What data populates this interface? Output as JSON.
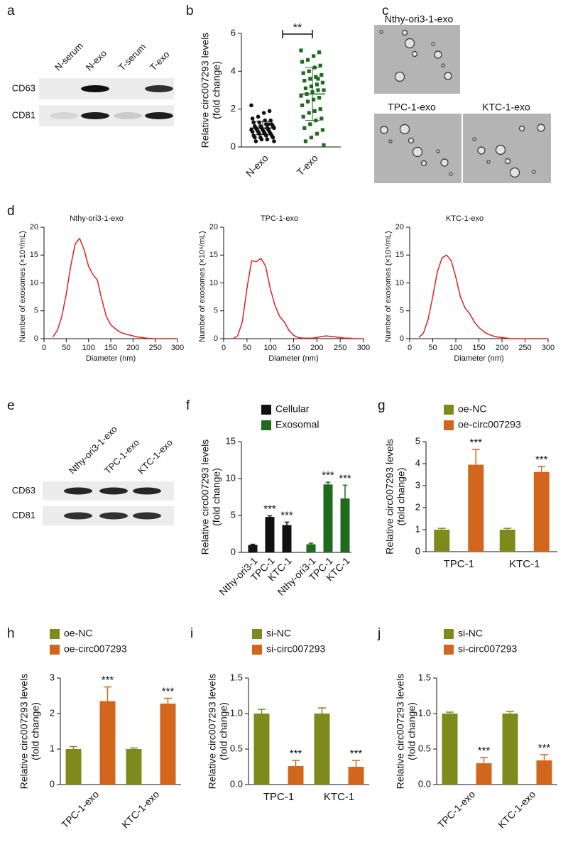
{
  "chart_data": [
    {
      "type": "blot",
      "panel": "a",
      "lanes": [
        "N-serum",
        "N-exo",
        "T-serum",
        "T-exo"
      ],
      "proteins": [
        "CD63",
        "CD81"
      ]
    },
    {
      "type": "dot",
      "panel": "b",
      "ylabel": [
        "Relative circ007293 levels",
        "(fold change)"
      ],
      "categories": [
        "N-exo",
        "T-exo"
      ],
      "colors": [
        "#111111",
        "#1e6b1e"
      ],
      "values": [
        [
          2.2,
          1.9,
          1.8,
          1.6,
          1.5,
          1.4,
          1.4,
          1.3,
          1.3,
          1.2,
          1.2,
          1.1,
          1.1,
          1.1,
          1.0,
          1.0,
          1.0,
          1.0,
          0.9,
          0.9,
          0.9,
          0.9,
          0.8,
          0.8,
          0.8,
          0.8,
          0.7,
          0.7,
          0.7,
          0.6,
          0.6,
          0.6,
          0.5,
          0.5,
          0.5,
          0.4,
          0.4,
          0.3,
          0.3,
          1.2
        ],
        [
          5.1,
          5.0,
          4.8,
          4.6,
          4.5,
          4.3,
          4.2,
          4.0,
          3.9,
          3.8,
          3.7,
          3.6,
          3.5,
          3.4,
          3.3,
          3.2,
          3.1,
          3.0,
          3.0,
          2.9,
          2.8,
          2.7,
          2.6,
          2.5,
          2.4,
          2.2,
          2.0,
          1.9,
          1.8,
          1.6,
          1.5,
          1.4,
          1.2,
          1.0,
          0.9,
          0.7,
          0.5,
          0.3,
          0.1,
          3.6
        ]
      ],
      "means": [
        1.0,
        2.8
      ],
      "sd": [
        0.35,
        1.4
      ],
      "significance": "**",
      "ylim": [
        0,
        6
      ],
      "yticks": [
        0,
        2,
        4,
        6
      ]
    },
    {
      "type": "micrograph",
      "panel": "c",
      "images": [
        "Nthy-ori3-1-exo",
        "TPC-1-exo",
        "KTC-1-exo"
      ]
    },
    {
      "type": "line",
      "panel": "d",
      "title": "Nthy-ori3-1-exo",
      "xlabel": "Diameter (nm)",
      "ylabel": "Number of exosomes (×10⁶/mL)",
      "color": "#e02020",
      "x": [
        20,
        30,
        40,
        50,
        60,
        70,
        80,
        90,
        100,
        110,
        120,
        130,
        140,
        150,
        160,
        170,
        180,
        190,
        200,
        210,
        220,
        230,
        240,
        250,
        260,
        270,
        280,
        290,
        300
      ],
      "values": [
        0.3,
        1.5,
        4,
        8,
        13,
        17,
        18,
        16,
        13,
        11.5,
        10.5,
        7,
        4,
        2.5,
        1.8,
        1.2,
        0.9,
        0.7,
        0.5,
        0.3,
        0.2,
        0.1,
        0.05,
        0,
        0,
        0,
        0,
        0,
        0
      ],
      "xlim": [
        0,
        300
      ],
      "xticks": [
        0,
        50,
        100,
        150,
        200,
        250,
        300
      ],
      "ylim": [
        0,
        20
      ],
      "yticks": [
        0,
        5,
        10,
        15,
        20
      ]
    },
    {
      "type": "line",
      "title": "TPC-1-exo",
      "xlabel": "Diameter (nm)",
      "ylabel": "Number of exosomes (×10⁶/mL)",
      "color": "#e02020",
      "x": [
        20,
        30,
        40,
        50,
        60,
        70,
        80,
        90,
        100,
        110,
        120,
        130,
        140,
        150,
        160,
        170,
        180,
        190,
        200,
        210,
        220,
        230,
        240,
        250,
        260,
        270,
        280,
        290,
        300
      ],
      "values": [
        0,
        0.5,
        3,
        9,
        14,
        13.8,
        14.4,
        13,
        9,
        6,
        4,
        3,
        1.5,
        0.6,
        0.2,
        0.1,
        0.1,
        0.1,
        0.2,
        0.4,
        0.5,
        0.4,
        0.3,
        0.2,
        0.1,
        0.1,
        0,
        0,
        0
      ],
      "xlim": [
        0,
        300
      ],
      "xticks": [
        0,
        50,
        100,
        150,
        200,
        250,
        300
      ],
      "ylim": [
        0,
        20
      ],
      "yticks": [
        0,
        5,
        10,
        15,
        20
      ]
    },
    {
      "type": "line",
      "title": "KTC-1-exo",
      "xlabel": "Diameter (nm)",
      "ylabel": "Number of exosomes (×10⁶/mL)",
      "color": "#e02020",
      "x": [
        20,
        30,
        40,
        50,
        60,
        70,
        80,
        90,
        100,
        110,
        120,
        130,
        140,
        150,
        160,
        170,
        180,
        190,
        200,
        210,
        220,
        230,
        240,
        250,
        260,
        270,
        280,
        290,
        300
      ],
      "values": [
        0.2,
        1,
        3.5,
        7.5,
        12,
        14.5,
        15,
        14,
        11,
        7.5,
        5.5,
        4.5,
        3,
        2,
        1.3,
        0.8,
        0.5,
        0.3,
        0.2,
        0.1,
        0,
        0,
        0,
        0,
        0,
        0,
        0,
        0,
        0
      ],
      "xlim": [
        0,
        300
      ],
      "xticks": [
        0,
        50,
        100,
        150,
        200,
        250,
        300
      ],
      "ylim": [
        0,
        20
      ],
      "yticks": [
        0,
        5,
        10,
        15,
        20
      ]
    },
    {
      "type": "blot",
      "panel": "e",
      "lanes": [
        "Nthy-ori3-1-exo",
        "TPC-1-exo",
        "KTC-1-exo"
      ],
      "proteins": [
        "CD63",
        "CD81"
      ]
    },
    {
      "type": "bar",
      "panel": "f",
      "ylabel": [
        "Relative circ007293 levels",
        "(fold change)"
      ],
      "categories": [
        "Nthy-ori3-1",
        "TPC-1",
        "KTC-1"
      ],
      "series": [
        {
          "name": "Cellular",
          "color": "#111111",
          "values": [
            1,
            4.8,
            3.7
          ],
          "errors": [
            0.1,
            0.15,
            0.4
          ],
          "significance": [
            null,
            "***",
            "***"
          ]
        },
        {
          "name": "Exosomal",
          "color": "#1e6b1e",
          "values": [
            1.1,
            9.2,
            7.3
          ],
          "errors": [
            0.15,
            0.3,
            1.8
          ],
          "significance": [
            null,
            "***",
            "***"
          ]
        }
      ],
      "ylim": [
        0,
        15
      ],
      "yticks": [
        0,
        5,
        10,
        15
      ]
    },
    {
      "type": "bar",
      "panel": "g",
      "ylabel": [
        "Relative circ007293 levels",
        "(fold change)"
      ],
      "categories": [
        "TPC-1",
        "KTC-1"
      ],
      "series": [
        {
          "name": "oe-NC",
          "color": "#7f8a1c",
          "values": [
            1,
            1
          ],
          "errors": [
            0.06,
            0.06
          ],
          "significance": [
            null,
            null
          ]
        },
        {
          "name": "oe-circ007293",
          "color": "#d2661c",
          "values": [
            3.95,
            3.62
          ],
          "errors": [
            0.7,
            0.25
          ],
          "significance": [
            "***",
            "***"
          ]
        }
      ],
      "ylim": [
        0,
        5
      ],
      "yticks": [
        0,
        1,
        2,
        3,
        4,
        5
      ]
    },
    {
      "type": "bar",
      "panel": "h",
      "ylabel": [
        "Relative circ007293 levels",
        "(fold change)"
      ],
      "categories": [
        "TPC-1-exo",
        "KTC-1-exo"
      ],
      "series": [
        {
          "name": "oe-NC",
          "color": "#7f8a1c",
          "values": [
            1,
            1
          ],
          "errors": [
            0.07,
            0.03
          ],
          "significance": [
            null,
            null
          ]
        },
        {
          "name": "oe-circ007293",
          "color": "#d2661c",
          "values": [
            2.35,
            2.28
          ],
          "errors": [
            0.4,
            0.15
          ],
          "significance": [
            "***",
            "***"
          ]
        }
      ],
      "ylim": [
        0,
        3
      ],
      "yticks": [
        0,
        1,
        2,
        3
      ]
    },
    {
      "type": "bar",
      "panel": "i",
      "ylabel": [
        "Relative circ007293 levels",
        "(fold change)"
      ],
      "categories": [
        "TPC-1",
        "KTC-1"
      ],
      "series": [
        {
          "name": "si-NC",
          "color": "#7f8a1c",
          "values": [
            1,
            1
          ],
          "errors": [
            0.06,
            0.08
          ],
          "significance": [
            null,
            null
          ]
        },
        {
          "name": "si-circ007293",
          "color": "#d2661c",
          "values": [
            0.26,
            0.25
          ],
          "errors": [
            0.08,
            0.09
          ],
          "significance": [
            "***",
            "***"
          ]
        }
      ],
      "ylim": [
        0,
        1.5
      ],
      "yticks": [
        {
          "value": 0,
          "label": "0.0"
        },
        0.5,
        {
          "value": 1,
          "label": "1.0"
        },
        1.5
      ]
    },
    {
      "type": "bar",
      "panel": "j",
      "ylabel": [
        "Relative circ007293 levels",
        "(fold change)"
      ],
      "categories": [
        "TPC-1-exo",
        "KTC-1-exo"
      ],
      "series": [
        {
          "name": "si-NC",
          "color": "#7f8a1c",
          "values": [
            1,
            1
          ],
          "errors": [
            0.02,
            0.03
          ],
          "significance": [
            null,
            null
          ]
        },
        {
          "name": "si-circ007293",
          "color": "#d2661c",
          "values": [
            0.3,
            0.34
          ],
          "errors": [
            0.08,
            0.08
          ],
          "significance": [
            "***",
            "***"
          ]
        }
      ],
      "ylim": [
        0,
        1.5
      ],
      "yticks": [
        {
          "value": 0,
          "label": "0.0"
        },
        0.5,
        {
          "value": 1,
          "label": "1.0"
        },
        1.5
      ]
    }
  ]
}
